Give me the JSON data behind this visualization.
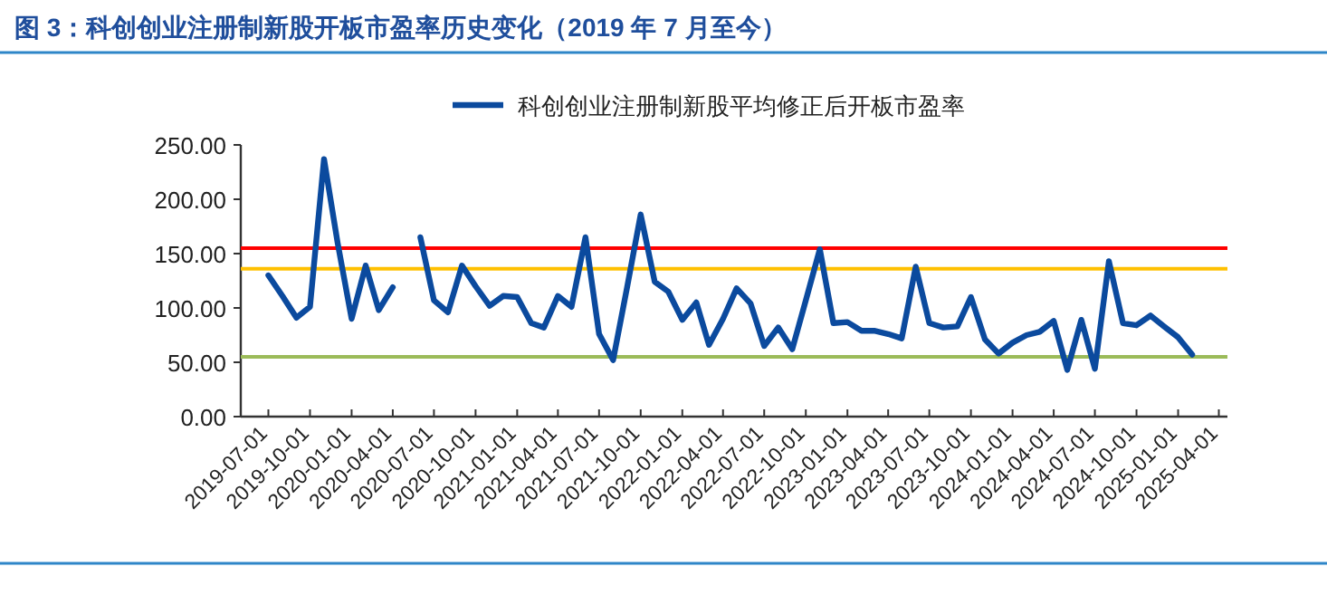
{
  "chart_data": {
    "type": "line",
    "title": "图 3：科创创业注册制新股开板市盈率历史变化（2019 年 7 月至今）",
    "x": [
      "2019-07",
      "2019-08",
      "2019-09",
      "2019-10",
      "2019-11",
      "2019-12",
      "2020-01",
      "2020-02",
      "2020-03",
      "2020-04",
      "2020-05",
      "2020-06",
      "2020-07",
      "2020-08",
      "2020-09",
      "2020-10",
      "2020-11",
      "2020-12",
      "2021-01",
      "2021-02",
      "2021-03",
      "2021-04",
      "2021-05",
      "2021-06",
      "2021-07",
      "2021-08",
      "2021-09",
      "2021-10",
      "2021-11",
      "2021-12",
      "2022-01",
      "2022-02",
      "2022-03",
      "2022-04",
      "2022-05",
      "2022-06",
      "2022-07",
      "2022-08",
      "2022-09",
      "2022-10",
      "2022-11",
      "2022-12",
      "2023-01",
      "2023-02",
      "2023-03",
      "2023-04",
      "2023-05",
      "2023-06",
      "2023-07",
      "2023-08",
      "2023-09",
      "2023-10",
      "2023-11",
      "2023-12",
      "2024-01",
      "2024-02",
      "2024-03",
      "2024-04",
      "2024-05",
      "2024-06",
      "2024-07",
      "2024-08",
      "2024-09",
      "2024-10",
      "2024-11",
      "2024-12",
      "2025-01",
      "2025-02"
    ],
    "series": [
      {
        "name": "科创创业注册制新股平均修正后开板市盈率",
        "color": "#0b4a9e",
        "values": [
          130,
          111,
          91,
          101,
          237,
          160,
          90,
          139,
          98,
          119,
          null,
          165,
          107,
          96,
          139,
          120,
          102,
          111,
          110,
          86,
          82,
          111,
          101,
          165,
          76,
          52,
          119,
          186,
          124,
          115,
          89,
          105,
          66,
          90,
          118,
          104,
          65,
          82,
          62,
          107,
          154,
          86,
          87,
          79,
          79,
          76,
          72,
          138,
          86,
          82,
          83,
          110,
          71,
          58,
          68,
          75,
          78,
          88,
          43,
          89,
          44,
          143,
          86,
          84,
          93,
          83,
          73,
          57
        ]
      }
    ],
    "xlim": [
      "2019-05-01",
      "2025-04-20"
    ],
    "xticks": [
      {
        "value": "2019-07-01",
        "label": "2019-07-01"
      },
      {
        "value": "2019-10-01",
        "label": "2019-10-01"
      },
      {
        "value": "2020-01-01",
        "label": "2020-01-01"
      },
      {
        "value": "2020-04-01",
        "label": "2020-04-01"
      },
      {
        "value": "2020-07-01",
        "label": "2020-07-01"
      },
      {
        "value": "2020-10-01",
        "label": "2020-10-01"
      },
      {
        "value": "2021-01-01",
        "label": "2021-01-01"
      },
      {
        "value": "2021-04-01",
        "label": "2021-04-01"
      },
      {
        "value": "2021-07-01",
        "label": "2021-07-01"
      },
      {
        "value": "2021-10-01",
        "label": "2021-10-01"
      },
      {
        "value": "2022-01-01",
        "label": "2022-01-01"
      },
      {
        "value": "2022-04-01",
        "label": "2022-04-01"
      },
      {
        "value": "2022-07-01",
        "label": "2022-07-01"
      },
      {
        "value": "2022-10-01",
        "label": "2022-10-01"
      },
      {
        "value": "2023-01-01",
        "label": "2023-01-01"
      },
      {
        "value": "2023-04-01",
        "label": "2023-04-01"
      },
      {
        "value": "2023-07-01",
        "label": "2023-07-01"
      },
      {
        "value": "2023-10-01",
        "label": "2023-10-01"
      },
      {
        "value": "2024-01-01",
        "label": "2024-01-01"
      },
      {
        "value": "2024-04-01",
        "label": "2024-04-01"
      },
      {
        "value": "2024-07-01",
        "label": "2024-07-01"
      },
      {
        "value": "2024-10-01",
        "label": "2024-10-01"
      },
      {
        "value": "2025-01-01",
        "label": "2025-01-01"
      },
      {
        "value": "2025-04-01",
        "label": "2025-04-01"
      }
    ],
    "ylim": [
      0,
      250
    ],
    "yticks": [
      {
        "value": 0,
        "label": "0.00"
      },
      {
        "value": 50,
        "label": "50.00"
      },
      {
        "value": 100,
        "label": "100.00"
      },
      {
        "value": 150,
        "label": "150.00"
      },
      {
        "value": 200,
        "label": "200.00"
      },
      {
        "value": 250,
        "label": "250.00"
      }
    ],
    "ref_lines": [
      {
        "axis": "y",
        "value": 155,
        "color": "#ff0000"
      },
      {
        "axis": "y",
        "value": 136,
        "color": "#ffc000"
      },
      {
        "axis": "y",
        "value": 55,
        "color": "#9bbb59"
      }
    ],
    "legend": "top",
    "grid": false,
    "marker": "none",
    "line_style": "solid"
  }
}
